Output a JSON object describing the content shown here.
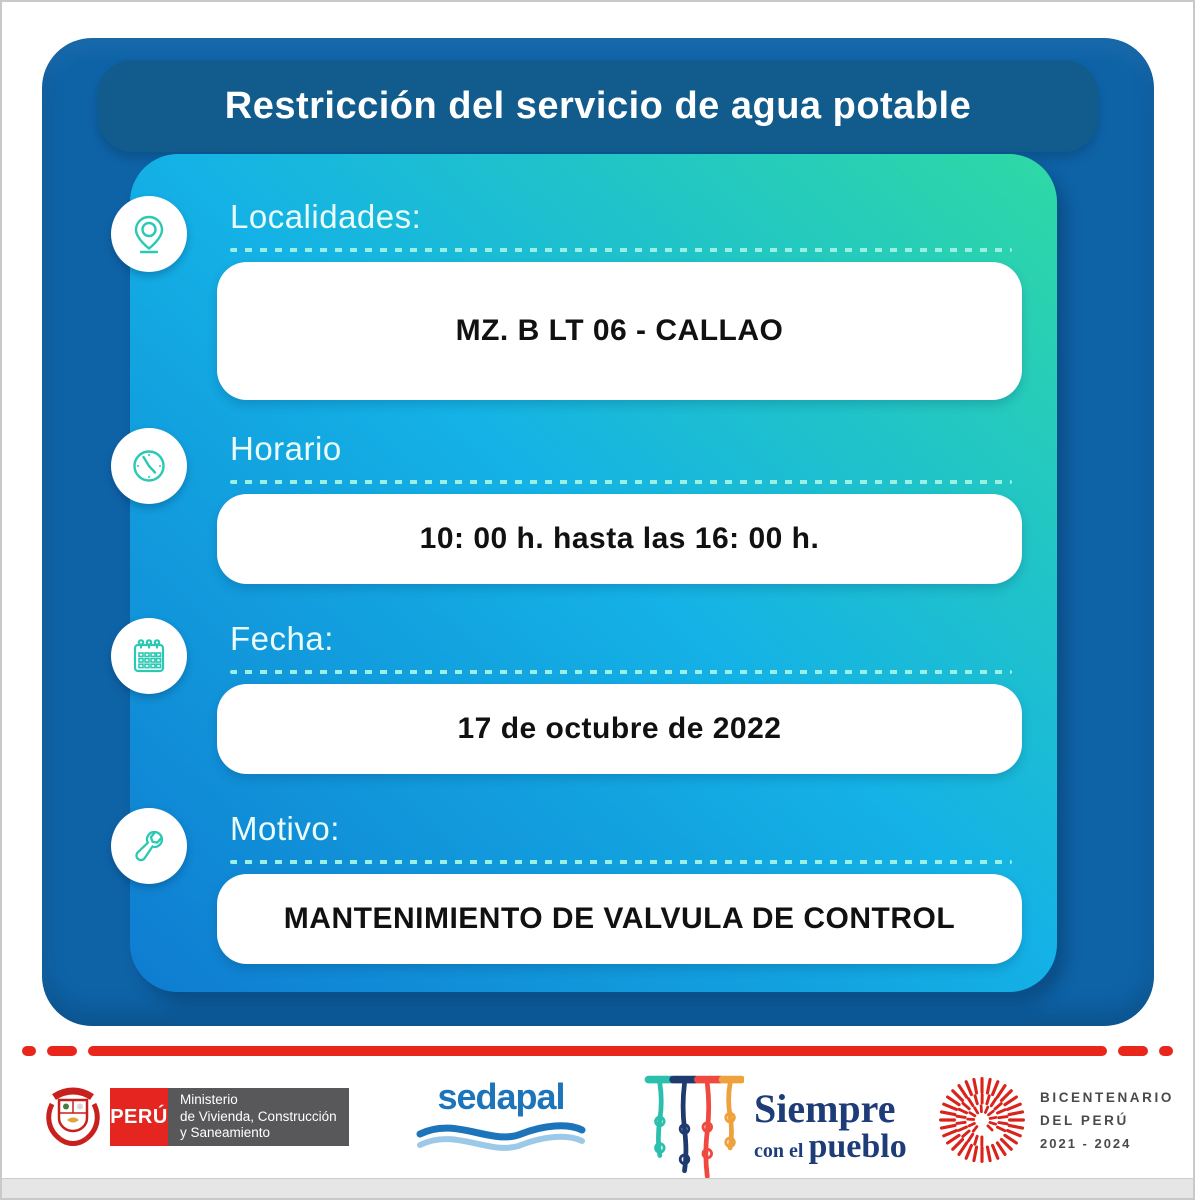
{
  "title": "Restricción del servicio de agua potable",
  "sections": [
    {
      "icon": "map-pin-icon",
      "label": "Localidades:",
      "value": "MZ. B LT 06 - CALLAO"
    },
    {
      "icon": "clock-icon",
      "label": "Horario",
      "value": "10: 00 h. hasta las 16: 00 h."
    },
    {
      "icon": "calendar-icon",
      "label": "Fecha:",
      "value": "17 de octubre de 2022"
    },
    {
      "icon": "wrench-icon",
      "label": "Motivo:",
      "value": "MANTENIMIENTO DE VALVULA DE CONTROL"
    }
  ],
  "footer": {
    "ministry": {
      "country": "PERÚ",
      "line1": "Ministerio",
      "line2": "de Vivienda, Construcción",
      "line3": "y Saneamiento"
    },
    "sedapal": {
      "wordmark": "sedapal"
    },
    "siempre": {
      "word1": "Siempre",
      "word2": "con el",
      "word3": "pueblo"
    },
    "bicentenario": {
      "line1": "BICENTENARIO",
      "line2": "DEL PERÚ",
      "line3": "2021 - 2024"
    }
  },
  "colors": {
    "card_blue": "#0E63A7",
    "title_bar_blue": "#115C8C",
    "gradient_blue": "#0F7CD0",
    "gradient_cyan": "#14B2E6",
    "gradient_green": "#2FD9A4",
    "icon_teal": "#2BC9B3",
    "divider_red": "#E8261B",
    "peru_red": "#E52620",
    "ministry_gray": "#58585A",
    "sedapal_blue": "#1C75BB",
    "sedapal_light_blue": "#9CC9E8",
    "siempre_navy": "#1E3C78",
    "bicentenario_red": "#D9231B",
    "bicentenario_text": "#4A4A4C"
  }
}
